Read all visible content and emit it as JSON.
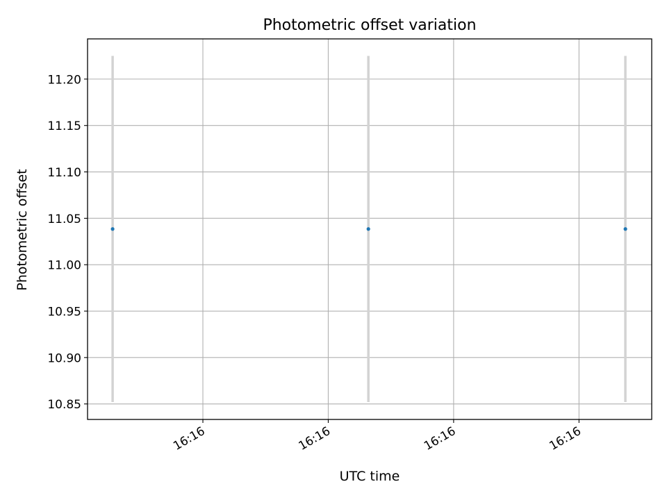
{
  "chart_data": {
    "type": "scatter",
    "title": "Photometric offset variation",
    "xlabel": "UTC time",
    "ylabel": "Photometric offset",
    "grid": true,
    "legend": "none",
    "ylim": [
      10.8333,
      11.2433
    ],
    "xlim": [
      -1.0,
      21.5
    ],
    "x_ticks": [
      {
        "value": 3.6,
        "label": "16:16"
      },
      {
        "value": 8.6,
        "label": "16:16"
      },
      {
        "value": 13.6,
        "label": "16:16"
      },
      {
        "value": 18.6,
        "label": "16:16"
      }
    ],
    "y_ticks": [
      {
        "value": 10.85,
        "label": "10.85"
      },
      {
        "value": 10.9,
        "label": "10.90"
      },
      {
        "value": 10.95,
        "label": "10.95"
      },
      {
        "value": 11.0,
        "label": "11.00"
      },
      {
        "value": 11.05,
        "label": "11.05"
      },
      {
        "value": 11.1,
        "label": "11.10"
      },
      {
        "value": 11.15,
        "label": "11.15"
      },
      {
        "value": 11.2,
        "label": "11.20"
      }
    ],
    "series": [
      {
        "x": [
          0.0,
          10.2,
          20.45
        ],
        "values": [
          11.0385,
          11.0385,
          11.0385
        ],
        "error_low": [
          10.852,
          10.852,
          10.852
        ],
        "error_high": [
          11.225,
          11.225,
          11.225
        ],
        "color": "#1f77b4",
        "error_color": "#d3d3d3"
      }
    ]
  }
}
